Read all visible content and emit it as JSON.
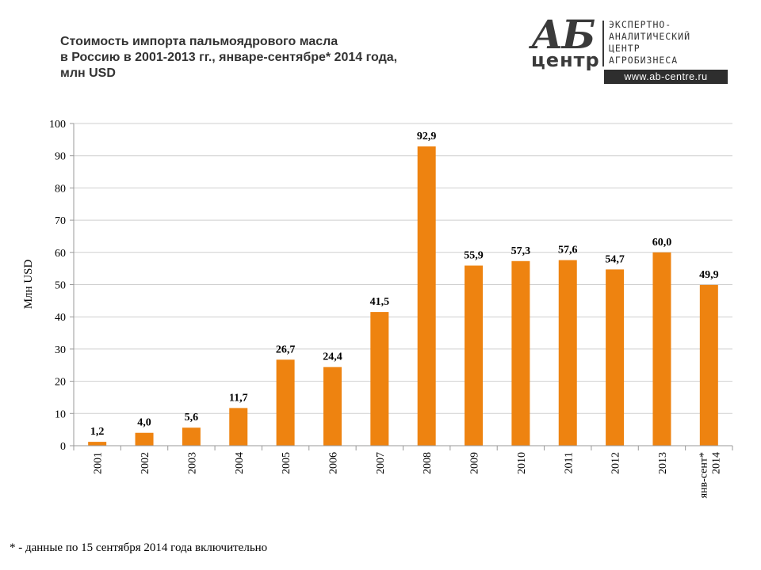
{
  "title_lines": [
    "Стоимость импорта пальмоядрового масла",
    "в Россию в 2001-2013 гг., январе-сентябре* 2014 года,",
    "млн USD"
  ],
  "logo": {
    "big": "АБ",
    "small": "центр",
    "text_lines": [
      "ЭКСПЕРТНО-",
      "АНАЛИТИЧЕСКИЙ",
      "ЦЕНТР",
      "АГРОБИЗНЕСА"
    ],
    "url": "www.ab-centre.ru"
  },
  "footnote": "* - данные по 15 сентября 2014 года включительно",
  "colors": {
    "bar": "#ee8310",
    "grid": "#cfcfcf",
    "axis": "#999999"
  },
  "chart_data": {
    "type": "bar",
    "title": "Стоимость импорта пальмоядрового масла в Россию в 2001-2013 гг., январе-сентябре* 2014 года, млн USD",
    "ylabel": "Млн USD",
    "xlabel": "",
    "ylim": [
      0,
      100
    ],
    "yticks": [
      0,
      10,
      20,
      30,
      40,
      50,
      60,
      70,
      80,
      90,
      100
    ],
    "grid": true,
    "categories": [
      "2001",
      "2002",
      "2003",
      "2004",
      "2005",
      "2006",
      "2007",
      "2008",
      "2009",
      "2010",
      "2011",
      "2012",
      "2013",
      "янв-сент* 2014"
    ],
    "values": [
      1.2,
      4.0,
      5.6,
      11.7,
      26.7,
      24.4,
      41.5,
      92.9,
      55.9,
      57.3,
      57.6,
      54.7,
      60.0,
      49.9
    ],
    "data_labels": [
      "1,2",
      "4,0",
      "5,6",
      "11,7",
      "26,7",
      "24,4",
      "41,5",
      "92,9",
      "55,9",
      "57,3",
      "57,6",
      "54,7",
      "60,0",
      "49,9"
    ]
  }
}
